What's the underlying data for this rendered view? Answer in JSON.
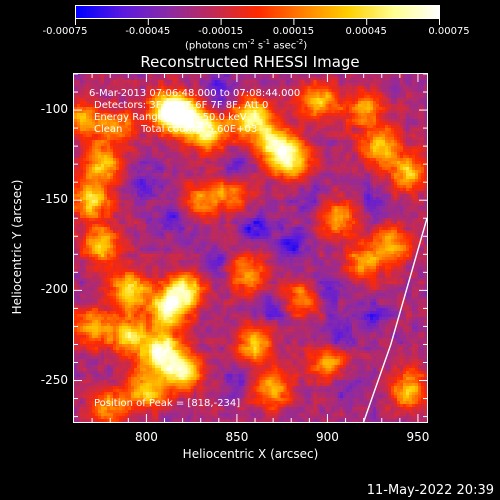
{
  "colorbar": {
    "tick_labels": [
      "-0.00075",
      "-0.00045",
      "-0.00015",
      "0.00015",
      "0.00045",
      "0.00075"
    ],
    "unit_label_parts": [
      "(photons cm",
      "-2",
      " s",
      "-1",
      " asec",
      "-2",
      ")"
    ]
  },
  "title": "Reconstructed RHESSI Image",
  "annotations": {
    "time_range": "6-Mar-2013 07:06:48.000 to 07:08:44.000",
    "detectors": "Detectors: 3F 4F 5F 6F 7F 8F, Att 0",
    "energy_range": "Energy Range: 25.0 - 50.0 keV",
    "method": "Clean",
    "total_counts": "Total counts: 5.60E+03",
    "peak": "Position of Peak = [818,-234]"
  },
  "axes": {
    "xlabel": "Heliocentric X (arcsec)",
    "ylabel": "Heliocentric Y (arcsec)",
    "x_ticks": [
      "800",
      "850",
      "900",
      "950"
    ],
    "y_ticks": [
      "-100",
      "-150",
      "-200",
      "-250"
    ]
  },
  "timestamp": "11-May-2022 20:39",
  "chart_data": {
    "type": "heatmap",
    "title": "Reconstructed RHESSI Image",
    "xlabel": "Heliocentric X (arcsec)",
    "ylabel": "Heliocentric Y (arcsec)",
    "xlim": [
      760,
      955
    ],
    "ylim": [
      -273,
      -80
    ],
    "x_ticks": [
      800,
      850,
      900,
      950
    ],
    "y_ticks": [
      -100,
      -150,
      -200,
      -250
    ],
    "colorbar_range": [
      -0.00075,
      0.00075
    ],
    "colorbar_ticks": [
      -0.00075,
      -0.00045,
      -0.00015,
      0.00015,
      0.00045,
      0.00075
    ],
    "colormap": [
      "#0000ff",
      "#5a1ae0",
      "#8a2aa8",
      "#c02a58",
      "#ff2a00",
      "#ff8000",
      "#ffd000",
      "#ffff90",
      "#ffffff"
    ],
    "peak_position": [
      818,
      -234
    ],
    "limb_arc": [
      [
        955,
        -160
      ],
      [
        945,
        -195
      ],
      [
        935,
        -230
      ],
      [
        920,
        -273
      ]
    ],
    "hot_spots": [
      [
        812,
        -100,
        1.0
      ],
      [
        822,
        -104,
        0.9
      ],
      [
        835,
        -112,
        0.8
      ],
      [
        858,
        -104,
        0.9
      ],
      [
        870,
        -118,
        0.75
      ],
      [
        880,
        -128,
        0.85
      ],
      [
        895,
        -95,
        0.7
      ],
      [
        920,
        -100,
        0.55
      ],
      [
        930,
        -120,
        0.7
      ],
      [
        945,
        -135,
        0.65
      ],
      [
        775,
        -130,
        0.65
      ],
      [
        770,
        -150,
        0.75
      ],
      [
        775,
        -175,
        0.7
      ],
      [
        790,
        -200,
        0.85
      ],
      [
        812,
        -210,
        0.95
      ],
      [
        822,
        -200,
        0.8
      ],
      [
        790,
        -225,
        0.75
      ],
      [
        808,
        -234,
        1.0
      ],
      [
        820,
        -245,
        0.9
      ],
      [
        800,
        -255,
        0.75
      ],
      [
        770,
        -220,
        0.6
      ],
      [
        780,
        -265,
        0.55
      ],
      [
        855,
        -190,
        0.6
      ],
      [
        860,
        -230,
        0.7
      ],
      [
        870,
        -255,
        0.65
      ],
      [
        885,
        -205,
        0.55
      ],
      [
        905,
        -160,
        0.6
      ],
      [
        920,
        -185,
        0.55
      ],
      [
        935,
        -175,
        0.6
      ],
      [
        900,
        -240,
        0.6
      ],
      [
        945,
        -255,
        0.65
      ],
      [
        830,
        -150,
        0.5
      ],
      [
        848,
        -145,
        0.55
      ],
      [
        765,
        -105,
        0.6
      ],
      [
        785,
        -110,
        0.5
      ]
    ],
    "cold_spots": [
      [
        840,
        -90,
        0.8
      ],
      [
        850,
        -135,
        0.85
      ],
      [
        800,
        -140,
        0.6
      ],
      [
        815,
        -160,
        0.7
      ],
      [
        860,
        -165,
        0.8
      ],
      [
        880,
        -175,
        0.9
      ],
      [
        900,
        -200,
        0.8
      ],
      [
        840,
        -185,
        0.6
      ],
      [
        870,
        -210,
        0.7
      ],
      [
        905,
        -225,
        0.75
      ],
      [
        925,
        -215,
        0.6
      ],
      [
        890,
        -150,
        0.55
      ],
      [
        925,
        -150,
        0.5
      ],
      [
        850,
        -250,
        0.5
      ],
      [
        910,
        -255,
        0.55
      ]
    ]
  }
}
